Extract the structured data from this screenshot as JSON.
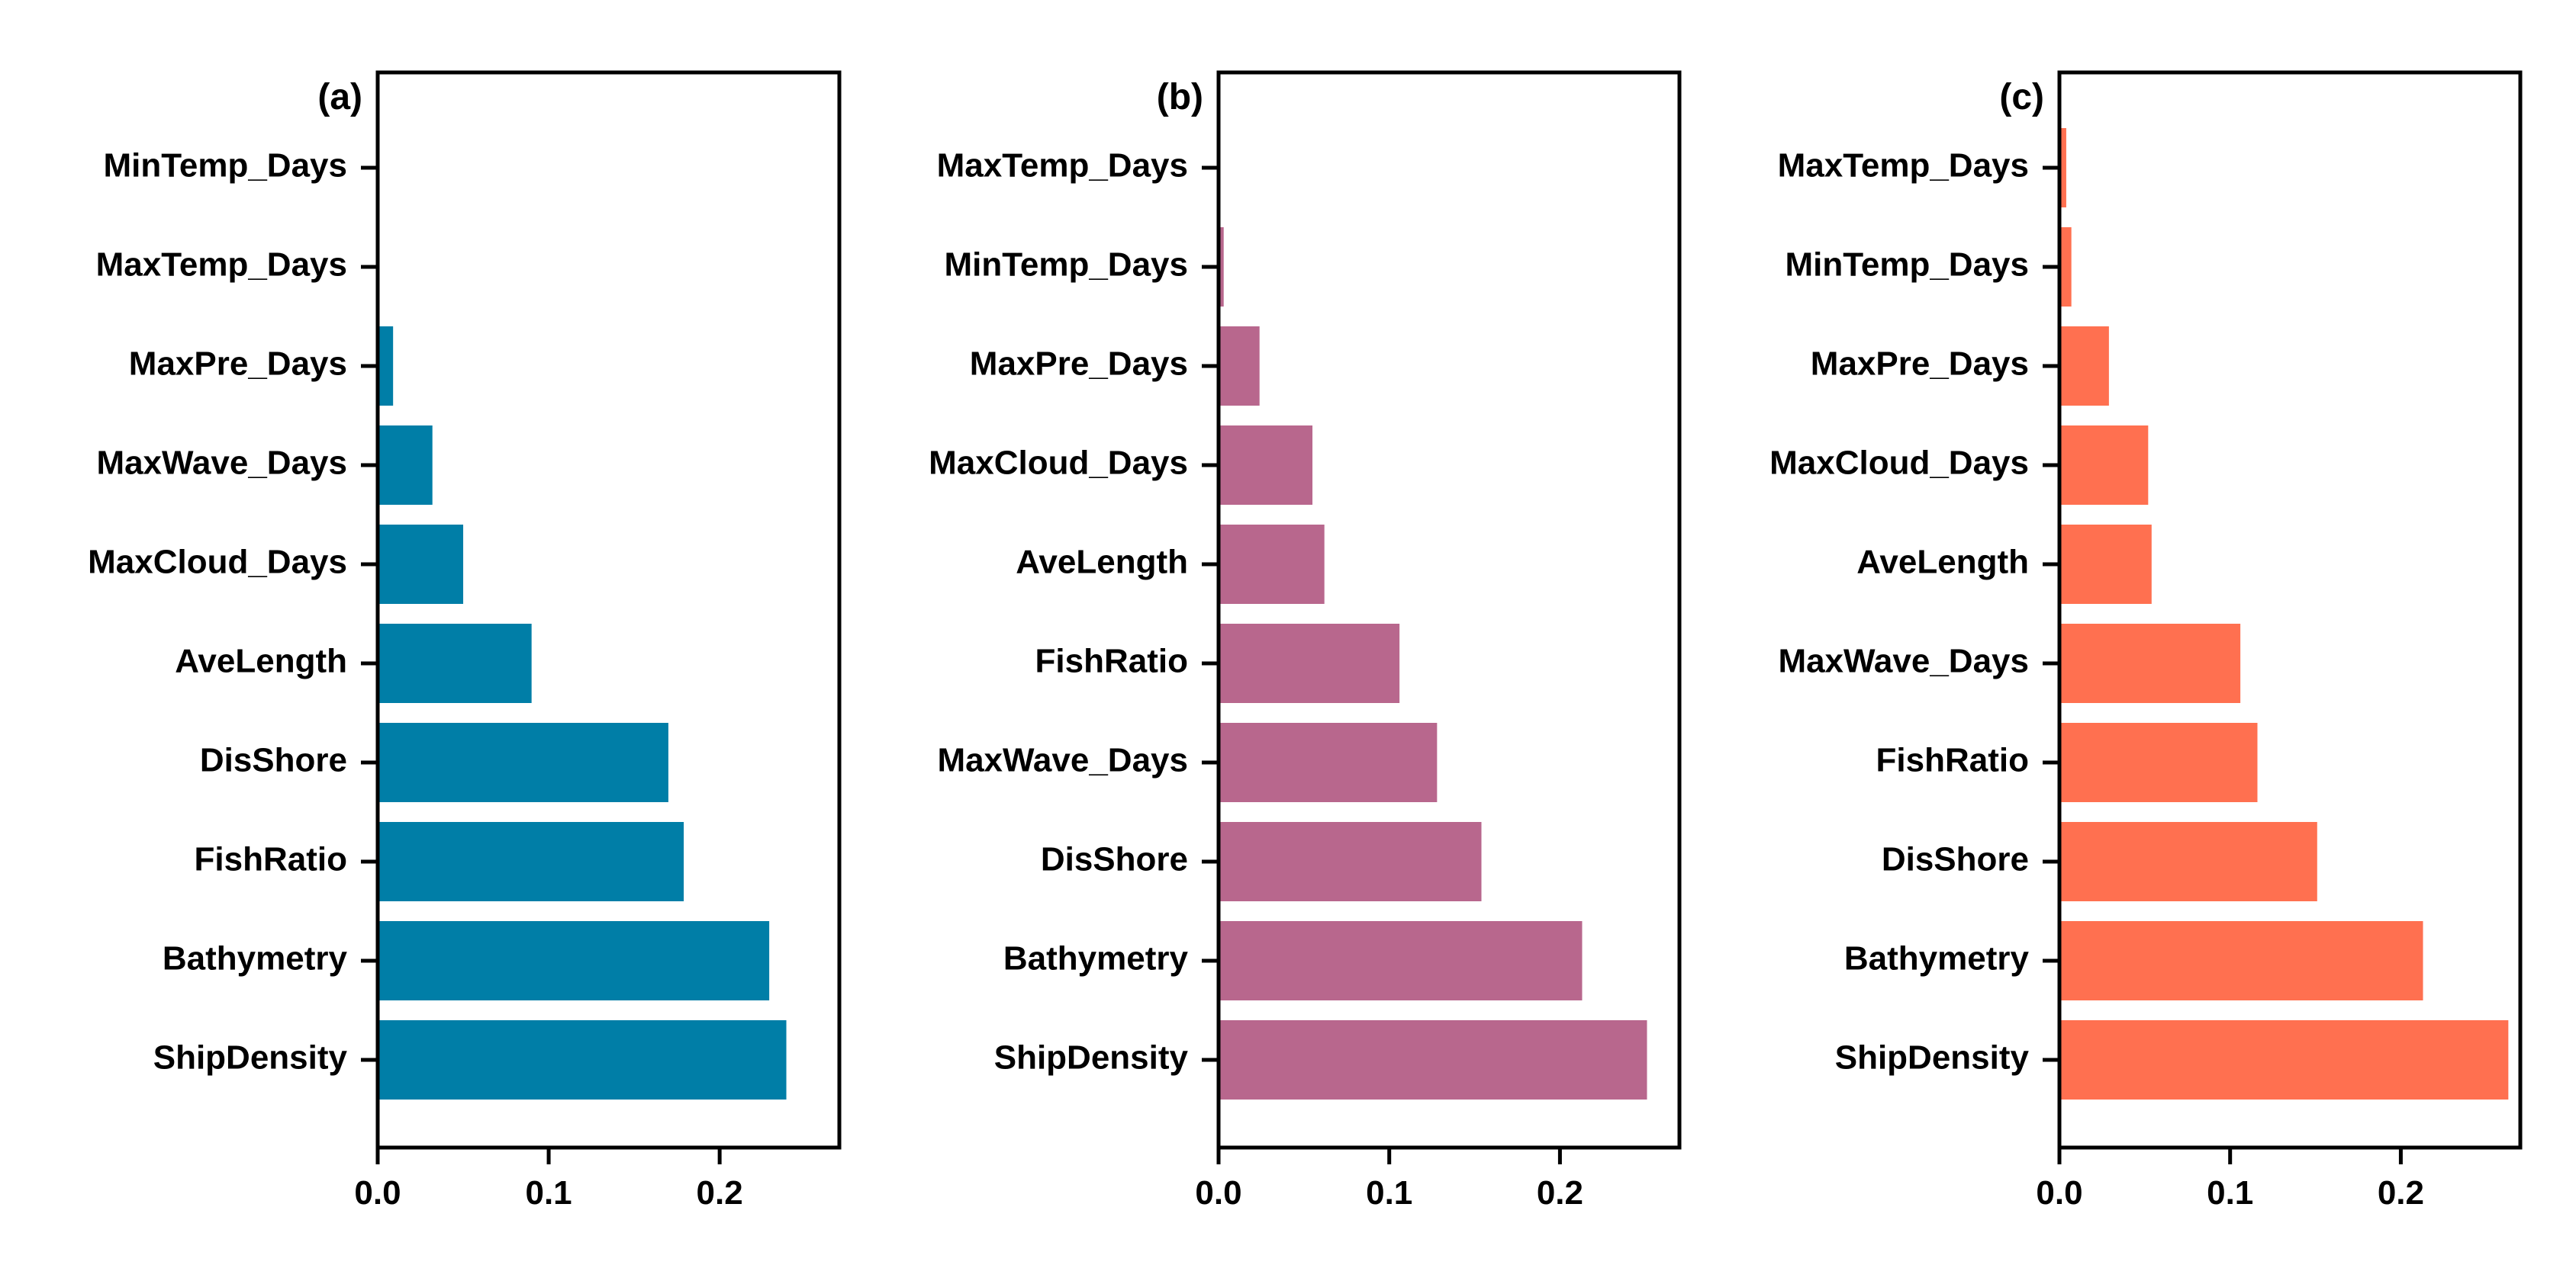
{
  "chart_data": [
    {
      "type": "bar",
      "orientation": "horizontal",
      "panel_label": "(a)",
      "color": "#007ea7",
      "categories": [
        "MinTemp_Days",
        "MaxTemp_Days",
        "MaxPre_Days",
        "MaxWave_Days",
        "MaxCloud_Days",
        "AveLength",
        "DisShore",
        "FishRatio",
        "Bathymetry",
        "ShipDensity"
      ],
      "values": [
        0.0,
        0.0,
        0.009,
        0.032,
        0.05,
        0.09,
        0.17,
        0.179,
        0.229,
        0.239
      ],
      "xlim": [
        0,
        0.27
      ],
      "xticks": [
        "0.0",
        "0.1",
        "0.2"
      ],
      "grid": false
    },
    {
      "type": "bar",
      "orientation": "horizontal",
      "panel_label": "(b)",
      "color": "#b8678d",
      "categories": [
        "MaxTemp_Days",
        "MinTemp_Days",
        "MaxPre_Days",
        "MaxCloud_Days",
        "AveLength",
        "FishRatio",
        "MaxWave_Days",
        "DisShore",
        "Bathymetry",
        "ShipDensity"
      ],
      "values": [
        0.001,
        0.003,
        0.024,
        0.055,
        0.062,
        0.106,
        0.128,
        0.154,
        0.213,
        0.251
      ],
      "xlim": [
        0,
        0.27
      ],
      "xticks": [
        "0.0",
        "0.1",
        "0.2"
      ],
      "grid": false
    },
    {
      "type": "bar",
      "orientation": "horizontal",
      "panel_label": "(c)",
      "color": "#ff7050",
      "categories": [
        "MaxTemp_Days",
        "MinTemp_Days",
        "MaxPre_Days",
        "MaxCloud_Days",
        "AveLength",
        "MaxWave_Days",
        "FishRatio",
        "DisShore",
        "Bathymetry",
        "ShipDensity"
      ],
      "values": [
        0.004,
        0.007,
        0.029,
        0.052,
        0.054,
        0.106,
        0.116,
        0.151,
        0.213,
        0.263
      ],
      "xlim": [
        0,
        0.27
      ],
      "xticks": [
        "0.0",
        "0.1",
        "0.2"
      ],
      "grid": false
    }
  ]
}
